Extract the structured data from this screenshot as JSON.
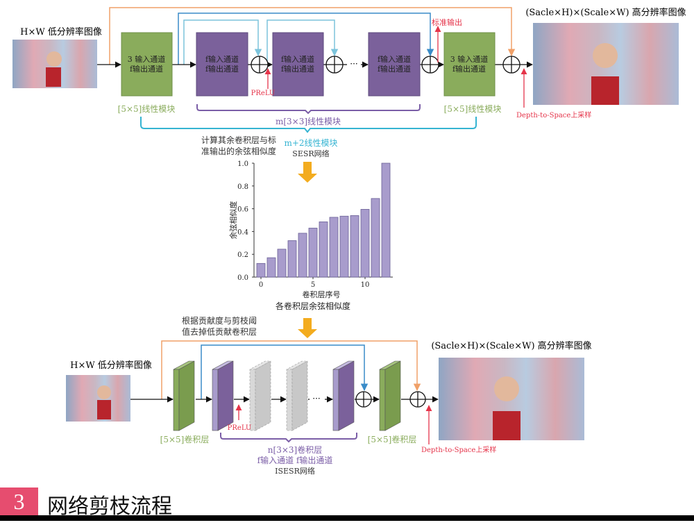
{
  "colors": {
    "green": "#8aac5c",
    "purple": "#7b619b",
    "light_purple": "#a89ccc",
    "orange": "#f0a068",
    "blue": "#3a8cc8",
    "light_blue": "#7cc4dc",
    "teal": "#35b4d2",
    "red": "#e5344a",
    "arrow": "#f3ac1f",
    "caption": "#e64d6f",
    "gray": "#c8c8c8"
  },
  "top": {
    "input_label": "H×W 低分辨率图像",
    "output_label": "(Sacle×H)×(Scale×W)  高分辨率图像",
    "green_block_1": {
      "line1": "3 输入通道",
      "line2": "f输出通道"
    },
    "purple_block": {
      "line1": "f输入通道",
      "line2": "f输出通道"
    },
    "green_block_2": {
      "line1": "3 输入通道",
      "line2": "f输出通道"
    },
    "ellipsis": "···",
    "prelu": "PReLU",
    "standard_output": "标准输出",
    "depth_to_space": "Depth-to-Space上采样",
    "linear_5x5_left": "[5×5]线性模块",
    "linear_5x5_right": "[5×5]线性模块",
    "m_linear": "m[3×3]线性模块",
    "m2_linear": "m+2线性模块",
    "network": "SESR网络",
    "compute_note": [
      "计算其余卷积层与标",
      "准输出的余弦相似度"
    ]
  },
  "chart_data": {
    "type": "bar",
    "x": [
      0,
      1,
      2,
      3,
      4,
      5,
      6,
      7,
      8,
      9,
      10,
      11,
      12
    ],
    "values": [
      0.12,
      0.17,
      0.245,
      0.32,
      0.385,
      0.43,
      0.485,
      0.525,
      0.535,
      0.54,
      0.595,
      0.69,
      1.0
    ],
    "xlabel": "卷积层序号",
    "ylabel": "余弦相似度",
    "title": "各卷积层余弦相似度",
    "ylim": [
      0,
      1.0
    ],
    "yticks": [
      "0.0",
      "0.2",
      "0.4",
      "0.6",
      "0.8",
      "1.0"
    ],
    "xticks": [
      "0",
      "5",
      "10"
    ],
    "grid": false,
    "bar_color": "#a89ccc"
  },
  "prune_note": [
    "根据贡献度与剪枝阈",
    "值去掉低贡献卷积层"
  ],
  "bottom": {
    "input_label": "H×W 低分辨率图像",
    "output_label": "(Sacle×H)×(Scale×W)  高分辨率图像",
    "ellipsis": "···",
    "prelu": "PReLU",
    "conv_5x5_left": "[5×5]卷积层",
    "conv_5x5_right": "[5×5]卷积层",
    "n_conv": "n[3×3]卷积层",
    "channels": "f输入通道 f输出通道",
    "network": "ISESR网络",
    "depth_to_space": "Depth-to-Space上采样"
  },
  "caption": {
    "number": "3",
    "title": "网络剪枝流程"
  }
}
